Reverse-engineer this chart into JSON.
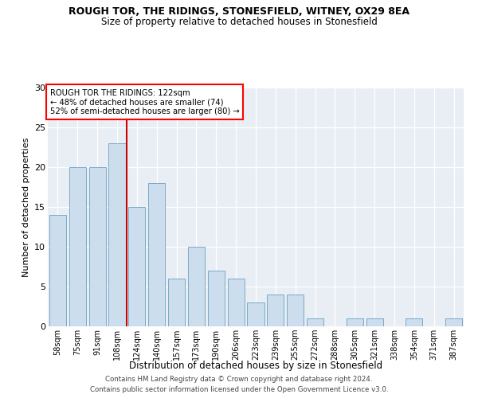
{
  "title": "ROUGH TOR, THE RIDINGS, STONESFIELD, WITNEY, OX29 8EA",
  "subtitle": "Size of property relative to detached houses in Stonesfield",
  "xlabel": "Distribution of detached houses by size in Stonesfield",
  "ylabel": "Number of detached properties",
  "categories": [
    "58sqm",
    "75sqm",
    "91sqm",
    "108sqm",
    "124sqm",
    "140sqm",
    "157sqm",
    "173sqm",
    "190sqm",
    "206sqm",
    "223sqm",
    "239sqm",
    "255sqm",
    "272sqm",
    "288sqm",
    "305sqm",
    "321sqm",
    "338sqm",
    "354sqm",
    "371sqm",
    "387sqm"
  ],
  "values": [
    14,
    20,
    20,
    23,
    15,
    18,
    6,
    10,
    7,
    6,
    3,
    4,
    4,
    1,
    0,
    1,
    1,
    0,
    1,
    0,
    1
  ],
  "bar_color": "#ccdded",
  "bar_edgecolor": "#7aaac8",
  "annotation_text_line1": "ROUGH TOR THE RIDINGS: 122sqm",
  "annotation_text_line2": "← 48% of detached houses are smaller (74)",
  "annotation_text_line3": "52% of semi-detached houses are larger (80) →",
  "vline_color": "#cc0000",
  "vline_x_index": 4,
  "ylim": [
    0,
    30
  ],
  "yticks": [
    0,
    5,
    10,
    15,
    20,
    25,
    30
  ],
  "bg_color": "#e8eef4",
  "grid_color": "#ffffff",
  "footer_line1": "Contains HM Land Registry data © Crown copyright and database right 2024.",
  "footer_line2": "Contains public sector information licensed under the Open Government Licence v3.0."
}
